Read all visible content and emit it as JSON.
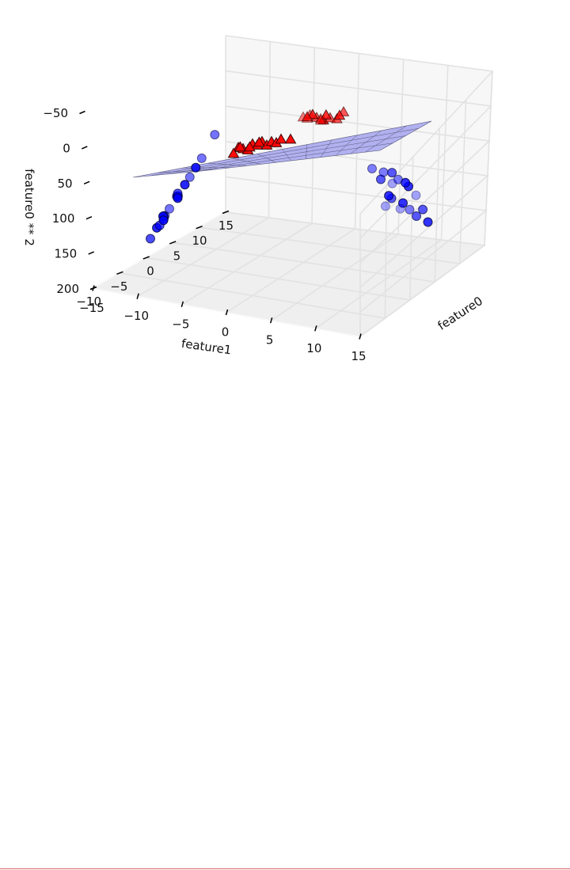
{
  "chart_data": {
    "type": "scatter",
    "projection": "3d",
    "grid": true,
    "xlabel": "feature0",
    "ylabel": "feature1",
    "zlabel": "feature0 ** 2",
    "xlim": [
      -10,
      15
    ],
    "ylim": [
      -15,
      15
    ],
    "zlim": [
      -50,
      200
    ],
    "z_inverted": true,
    "x_ticks": [
      "−10",
      "−5",
      "0",
      "5",
      "10",
      "15"
    ],
    "y_ticks": [
      "−15",
      "−10",
      "−5",
      "0",
      "5",
      "10",
      "15"
    ],
    "z_ticks": [
      "−50",
      "0",
      "50",
      "100",
      "150",
      "200"
    ],
    "colors": {
      "class0": "#0000ff",
      "class1": "#ff0000",
      "plane": "#9999ee",
      "pane": "#f2f2f2",
      "grid": "#e2e2e2"
    },
    "plane": {
      "z_corners": [
        20,
        20,
        20,
        20
      ]
    },
    "series": [
      {
        "marker": "circle",
        "points": [
          [
            -9,
            -12,
            81
          ],
          [
            -9.5,
            -11.5,
            90
          ],
          [
            -10,
            -12.2,
            100
          ],
          [
            -8.5,
            -11.8,
            72
          ],
          [
            -8,
            -11,
            64
          ],
          [
            -7.5,
            -11.5,
            56
          ],
          [
            -8.8,
            -12.5,
            77
          ],
          [
            -10.5,
            -12.8,
            110
          ],
          [
            -7,
            -10.8,
            49
          ],
          [
            -6.5,
            -10.5,
            42
          ],
          [
            -9.2,
            -12.8,
            85
          ],
          [
            -6,
            -10,
            36
          ],
          [
            -5.5,
            -9.5,
            30
          ],
          [
            -8.2,
            -10.5,
            67
          ],
          [
            -7.2,
            -12,
            52
          ],
          [
            -5,
            -7.5,
            25
          ],
          [
            -9.8,
            -11.2,
            96
          ],
          [
            -8.6,
            -12.9,
            74
          ],
          [
            12,
            10,
            144
          ],
          [
            12.5,
            11,
            156
          ],
          [
            11,
            10.5,
            121
          ],
          [
            13,
            11.5,
            169
          ],
          [
            10.5,
            9.5,
            110
          ],
          [
            11.5,
            12,
            132
          ],
          [
            12.2,
            12.5,
            149
          ],
          [
            10,
            10,
            100
          ],
          [
            13.5,
            12,
            182
          ],
          [
            11.8,
            9.8,
            139
          ],
          [
            12.8,
            10.6,
            164
          ],
          [
            10.8,
            11.2,
            117
          ],
          [
            13.2,
            12.8,
            174
          ],
          [
            11.2,
            11.8,
            125
          ],
          [
            12.4,
            9.2,
            154
          ],
          [
            9.5,
            9,
            90
          ],
          [
            10.2,
            10.8,
            104
          ],
          [
            14,
            13,
            196
          ]
        ]
      },
      {
        "marker": "triangle",
        "points": [
          [
            -1,
            -5,
            1
          ],
          [
            -0.5,
            -4.5,
            0.25
          ],
          [
            0,
            -4,
            0
          ],
          [
            0.5,
            -3.5,
            0.25
          ],
          [
            1,
            -3,
            1
          ],
          [
            -1.5,
            -5.5,
            2.25
          ],
          [
            0.3,
            -2.5,
            0.1
          ],
          [
            -0.8,
            -3.8,
            0.6
          ],
          [
            1.2,
            -2,
            1.4
          ],
          [
            0.8,
            -4.8,
            0.6
          ],
          [
            -0.3,
            -1.5,
            0.1
          ],
          [
            1.5,
            -1,
            2.25
          ],
          [
            -1.2,
            -2.8,
            1.4
          ],
          [
            0.1,
            -0.5,
            0
          ],
          [
            0.6,
            0.5,
            0.4
          ],
          [
            6,
            3,
            36
          ],
          [
            6.5,
            3.5,
            42
          ],
          [
            7,
            4,
            49
          ],
          [
            6.2,
            2.5,
            38
          ],
          [
            7.5,
            4.5,
            56
          ],
          [
            6.8,
            3.2,
            46
          ],
          [
            5.8,
            2.8,
            34
          ],
          [
            7.2,
            5,
            52
          ],
          [
            6.4,
            4.2,
            41
          ],
          [
            7.8,
            3.8,
            61
          ],
          [
            6.6,
            5.5,
            44
          ],
          [
            8,
            5.2,
            64
          ],
          [
            5.5,
            3.8,
            30
          ],
          [
            7.4,
            2.8,
            55
          ]
        ]
      }
    ]
  }
}
